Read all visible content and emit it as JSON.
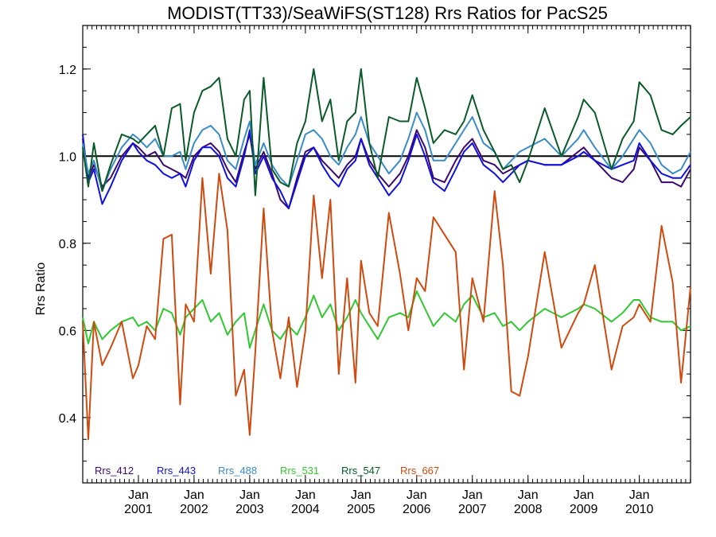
{
  "chart_data": {
    "type": "line",
    "title": "MODIST(TT33)/SeaWiFS(ST128)  Rrs Ratios for PacS25",
    "xlabel": "",
    "ylabel": "Rrs Ratio",
    "xlim": [
      2000.0,
      2010.92
    ],
    "ylim": [
      0.25,
      1.3
    ],
    "yticks": [
      0.4,
      0.6,
      0.8,
      1.0,
      1.2
    ],
    "ytick_labels": [
      "0.4",
      "0.6",
      "0.8",
      "1.0",
      "1.2"
    ],
    "xticks": [
      2001.0,
      2002.0,
      2003.0,
      2004.0,
      2005.0,
      2006.0,
      2007.0,
      2008.0,
      2009.0,
      2010.0
    ],
    "xtick_month": "Jan",
    "xtick_years": [
      "2001",
      "2002",
      "2003",
      "2004",
      "2005",
      "2006",
      "2007",
      "2008",
      "2009",
      "2010"
    ],
    "reference_line": 1.0,
    "legend_position": "bottom-left",
    "series": [
      {
        "name": "Rrs_412",
        "color": "#3b0a6e",
        "x": [
          2000.0,
          2000.1,
          2000.2,
          2000.35,
          2000.5,
          2000.7,
          2000.9,
          2001.0,
          2001.15,
          2001.3,
          2001.45,
          2001.6,
          2001.75,
          2001.85,
          2002.0,
          2002.15,
          2002.3,
          2002.45,
          2002.6,
          2002.75,
          2002.9,
          2003.0,
          2003.1,
          2003.25,
          2003.4,
          2003.55,
          2003.7,
          2003.85,
          2004.0,
          2004.15,
          2004.3,
          2004.45,
          2004.6,
          2004.75,
          2004.9,
          2005.0,
          2005.15,
          2005.3,
          2005.5,
          2005.7,
          2005.85,
          2006.0,
          2006.15,
          2006.3,
          2006.5,
          2006.7,
          2006.85,
          2007.0,
          2007.2,
          2007.4,
          2007.55,
          2007.7,
          2007.85,
          2008.0,
          2008.3,
          2008.6,
          2008.9,
          2009.0,
          2009.2,
          2009.5,
          2009.7,
          2009.9,
          2010.0,
          2010.2,
          2010.4,
          2010.6,
          2010.75,
          2010.92
        ],
        "y": [
          1.04,
          0.95,
          0.98,
          0.93,
          0.95,
          1.0,
          1.03,
          1.02,
          1.0,
          1.01,
          0.98,
          0.97,
          0.96,
          0.95,
          1.0,
          1.02,
          1.03,
          1.01,
          0.97,
          0.94,
          1.01,
          1.05,
          0.97,
          1.01,
          0.96,
          0.9,
          0.88,
          0.95,
          1.01,
          1.02,
          0.99,
          0.97,
          0.95,
          0.98,
          1.0,
          1.04,
          0.99,
          0.96,
          0.93,
          0.96,
          1.0,
          1.06,
          1.02,
          0.95,
          0.94,
          0.99,
          1.02,
          1.04,
          0.99,
          0.98,
          0.96,
          0.97,
          0.98,
          0.99,
          0.98,
          0.98,
          1.01,
          1.02,
          0.99,
          0.95,
          0.94,
          0.97,
          1.02,
          0.99,
          0.94,
          0.94,
          0.93,
          0.97
        ]
      },
      {
        "name": "Rrs_443",
        "color": "#1010e0",
        "x": [
          2000.0,
          2000.1,
          2000.2,
          2000.35,
          2000.5,
          2000.7,
          2000.9,
          2001.0,
          2001.15,
          2001.3,
          2001.45,
          2001.6,
          2001.75,
          2001.85,
          2002.0,
          2002.15,
          2002.3,
          2002.45,
          2002.6,
          2002.75,
          2002.9,
          2003.0,
          2003.1,
          2003.25,
          2003.4,
          2003.55,
          2003.7,
          2003.85,
          2004.0,
          2004.15,
          2004.3,
          2004.45,
          2004.6,
          2004.75,
          2004.9,
          2005.0,
          2005.15,
          2005.3,
          2005.5,
          2005.7,
          2005.85,
          2006.0,
          2006.15,
          2006.3,
          2006.5,
          2006.7,
          2006.85,
          2007.0,
          2007.2,
          2007.4,
          2007.55,
          2007.7,
          2007.85,
          2008.0,
          2008.3,
          2008.6,
          2008.9,
          2009.0,
          2009.2,
          2009.5,
          2009.7,
          2009.9,
          2010.0,
          2010.2,
          2010.4,
          2010.6,
          2010.75,
          2010.92
        ],
        "y": [
          1.05,
          0.94,
          0.97,
          0.89,
          0.93,
          0.99,
          1.03,
          1.01,
          0.99,
          0.98,
          0.96,
          0.95,
          0.96,
          0.93,
          0.99,
          1.02,
          1.02,
          1.0,
          0.95,
          0.93,
          1.0,
          1.06,
          0.96,
          1.0,
          0.95,
          0.92,
          0.88,
          0.94,
          1.0,
          1.02,
          0.98,
          0.95,
          0.93,
          0.97,
          0.99,
          1.04,
          0.98,
          0.95,
          0.91,
          0.94,
          0.99,
          1.05,
          1.0,
          0.94,
          0.92,
          0.97,
          1.01,
          1.03,
          0.98,
          0.96,
          0.94,
          0.96,
          0.98,
          0.99,
          0.98,
          0.98,
          1.0,
          1.01,
          0.99,
          0.97,
          0.98,
          0.99,
          1.03,
          0.99,
          0.96,
          0.95,
          0.95,
          0.98
        ]
      },
      {
        "name": "Rrs_488",
        "color": "#3a8cc8",
        "x": [
          2000.0,
          2000.1,
          2000.2,
          2000.35,
          2000.5,
          2000.7,
          2000.9,
          2001.0,
          2001.15,
          2001.3,
          2001.45,
          2001.6,
          2001.75,
          2001.85,
          2002.0,
          2002.15,
          2002.3,
          2002.45,
          2002.6,
          2002.75,
          2002.9,
          2003.0,
          2003.1,
          2003.25,
          2003.4,
          2003.55,
          2003.7,
          2003.85,
          2004.0,
          2004.15,
          2004.3,
          2004.45,
          2004.6,
          2004.75,
          2004.9,
          2005.0,
          2005.15,
          2005.3,
          2005.5,
          2005.7,
          2005.85,
          2006.0,
          2006.15,
          2006.3,
          2006.5,
          2006.7,
          2006.85,
          2007.0,
          2007.2,
          2007.4,
          2007.55,
          2007.7,
          2007.85,
          2008.0,
          2008.3,
          2008.6,
          2008.9,
          2009.0,
          2009.2,
          2009.5,
          2009.7,
          2009.9,
          2010.0,
          2010.2,
          2010.4,
          2010.6,
          2010.75,
          2010.92
        ],
        "y": [
          1.03,
          0.96,
          0.99,
          0.92,
          0.97,
          1.02,
          1.05,
          1.04,
          1.02,
          1.04,
          1.0,
          1.0,
          1.01,
          0.97,
          1.03,
          1.06,
          1.07,
          1.05,
          0.99,
          0.97,
          1.04,
          1.08,
          0.98,
          1.03,
          0.98,
          0.95,
          0.93,
          0.99,
          1.05,
          1.06,
          1.04,
          1.0,
          0.98,
          1.02,
          1.05,
          1.09,
          1.03,
          1.0,
          0.96,
          0.99,
          1.04,
          1.1,
          1.06,
          0.99,
          0.99,
          1.03,
          1.06,
          1.09,
          1.03,
          1.01,
          0.97,
          0.99,
          1.01,
          1.02,
          1.04,
          1.0,
          1.04,
          1.06,
          1.02,
          0.97,
          1.0,
          1.04,
          1.06,
          1.03,
          0.98,
          0.96,
          0.97,
          1.01
        ]
      },
      {
        "name": "Rrs_531",
        "color": "#30c830",
        "x": [
          2000.0,
          2000.1,
          2000.2,
          2000.35,
          2000.5,
          2000.7,
          2000.9,
          2001.0,
          2001.15,
          2001.3,
          2001.45,
          2001.6,
          2001.75,
          2001.85,
          2002.0,
          2002.15,
          2002.3,
          2002.45,
          2002.6,
          2002.75,
          2002.9,
          2003.0,
          2003.1,
          2003.25,
          2003.4,
          2003.55,
          2003.7,
          2003.85,
          2004.0,
          2004.15,
          2004.3,
          2004.45,
          2004.6,
          2004.75,
          2004.9,
          2005.0,
          2005.15,
          2005.3,
          2005.5,
          2005.7,
          2005.85,
          2006.0,
          2006.15,
          2006.3,
          2006.5,
          2006.7,
          2006.85,
          2007.0,
          2007.2,
          2007.4,
          2007.55,
          2007.7,
          2007.85,
          2008.0,
          2008.3,
          2008.6,
          2008.9,
          2009.0,
          2009.2,
          2009.5,
          2009.7,
          2009.9,
          2010.0,
          2010.2,
          2010.4,
          2010.6,
          2010.75,
          2010.92
        ],
        "y": [
          0.63,
          0.57,
          0.62,
          0.58,
          0.6,
          0.62,
          0.63,
          0.61,
          0.62,
          0.6,
          0.65,
          0.64,
          0.59,
          0.63,
          0.65,
          0.67,
          0.62,
          0.64,
          0.59,
          0.62,
          0.64,
          0.56,
          0.6,
          0.66,
          0.6,
          0.58,
          0.61,
          0.59,
          0.63,
          0.68,
          0.63,
          0.66,
          0.6,
          0.63,
          0.67,
          0.64,
          0.61,
          0.58,
          0.63,
          0.64,
          0.63,
          0.69,
          0.65,
          0.61,
          0.64,
          0.62,
          0.66,
          0.68,
          0.63,
          0.64,
          0.61,
          0.62,
          0.6,
          0.62,
          0.65,
          0.63,
          0.65,
          0.66,
          0.65,
          0.62,
          0.64,
          0.67,
          0.67,
          0.63,
          0.62,
          0.62,
          0.6,
          0.61
        ]
      },
      {
        "name": "Rrs_547",
        "color": "#0a5a2a",
        "x": [
          2000.0,
          2000.1,
          2000.2,
          2000.35,
          2000.5,
          2000.7,
          2000.9,
          2001.0,
          2001.15,
          2001.3,
          2001.45,
          2001.6,
          2001.75,
          2001.85,
          2002.0,
          2002.15,
          2002.3,
          2002.45,
          2002.6,
          2002.75,
          2002.9,
          2003.0,
          2003.1,
          2003.25,
          2003.4,
          2003.55,
          2003.7,
          2003.85,
          2004.0,
          2004.15,
          2004.3,
          2004.45,
          2004.6,
          2004.75,
          2004.9,
          2005.0,
          2005.15,
          2005.3,
          2005.5,
          2005.7,
          2005.85,
          2006.0,
          2006.15,
          2006.3,
          2006.5,
          2006.7,
          2006.85,
          2007.0,
          2007.2,
          2007.4,
          2007.55,
          2007.7,
          2007.85,
          2008.0,
          2008.3,
          2008.6,
          2008.9,
          2009.0,
          2009.2,
          2009.5,
          2009.7,
          2009.9,
          2010.0,
          2010.2,
          2010.4,
          2010.6,
          2010.75,
          2010.92
        ],
        "y": [
          1.02,
          0.93,
          1.03,
          0.92,
          0.98,
          1.05,
          1.04,
          1.03,
          1.05,
          1.07,
          1.0,
          1.11,
          1.12,
          0.99,
          1.1,
          1.15,
          1.16,
          1.18,
          1.04,
          1.0,
          1.13,
          1.15,
          0.91,
          1.18,
          0.97,
          0.94,
          0.93,
          1.03,
          1.08,
          1.2,
          1.08,
          1.13,
          0.99,
          1.08,
          1.1,
          1.2,
          1.03,
          0.95,
          1.09,
          1.08,
          1.08,
          1.18,
          1.11,
          1.03,
          1.06,
          1.05,
          1.08,
          1.14,
          1.06,
          1.01,
          0.97,
          0.98,
          0.94,
          0.99,
          1.11,
          1.0,
          1.09,
          1.13,
          1.1,
          0.97,
          1.04,
          1.08,
          1.17,
          1.14,
          1.06,
          1.05,
          1.07,
          1.09
        ]
      },
      {
        "name": "Rrs_667",
        "color": "#d04a10",
        "x": [
          2000.0,
          2000.1,
          2000.2,
          2000.35,
          2000.5,
          2000.7,
          2000.9,
          2001.0,
          2001.15,
          2001.3,
          2001.45,
          2001.6,
          2001.75,
          2001.85,
          2002.0,
          2002.15,
          2002.3,
          2002.45,
          2002.6,
          2002.75,
          2002.9,
          2003.0,
          2003.1,
          2003.25,
          2003.4,
          2003.55,
          2003.7,
          2003.85,
          2004.0,
          2004.15,
          2004.3,
          2004.45,
          2004.6,
          2004.75,
          2004.9,
          2005.0,
          2005.15,
          2005.3,
          2005.5,
          2005.7,
          2005.85,
          2006.0,
          2006.15,
          2006.3,
          2006.5,
          2006.7,
          2006.85,
          2007.0,
          2007.2,
          2007.4,
          2007.55,
          2007.7,
          2007.85,
          2008.0,
          2008.3,
          2008.6,
          2008.9,
          2009.0,
          2009.2,
          2009.5,
          2009.7,
          2009.9,
          2010.0,
          2010.2,
          2010.4,
          2010.6,
          2010.75,
          2010.92
        ],
        "y": [
          0.62,
          0.35,
          0.62,
          0.52,
          0.56,
          0.62,
          0.49,
          0.52,
          0.61,
          0.58,
          0.81,
          0.82,
          0.43,
          0.66,
          0.62,
          0.95,
          0.73,
          0.96,
          0.83,
          0.45,
          0.51,
          0.36,
          0.55,
          0.88,
          0.6,
          0.49,
          0.63,
          0.47,
          0.6,
          0.91,
          0.72,
          0.9,
          0.5,
          0.72,
          0.48,
          0.76,
          0.64,
          0.61,
          0.87,
          0.73,
          0.6,
          0.72,
          0.69,
          0.86,
          0.82,
          0.78,
          0.51,
          0.72,
          0.62,
          0.92,
          0.75,
          0.46,
          0.45,
          0.54,
          0.78,
          0.56,
          0.64,
          0.66,
          0.75,
          0.51,
          0.61,
          0.63,
          0.66,
          0.62,
          0.84,
          0.71,
          0.48,
          0.7
        ]
      }
    ]
  }
}
